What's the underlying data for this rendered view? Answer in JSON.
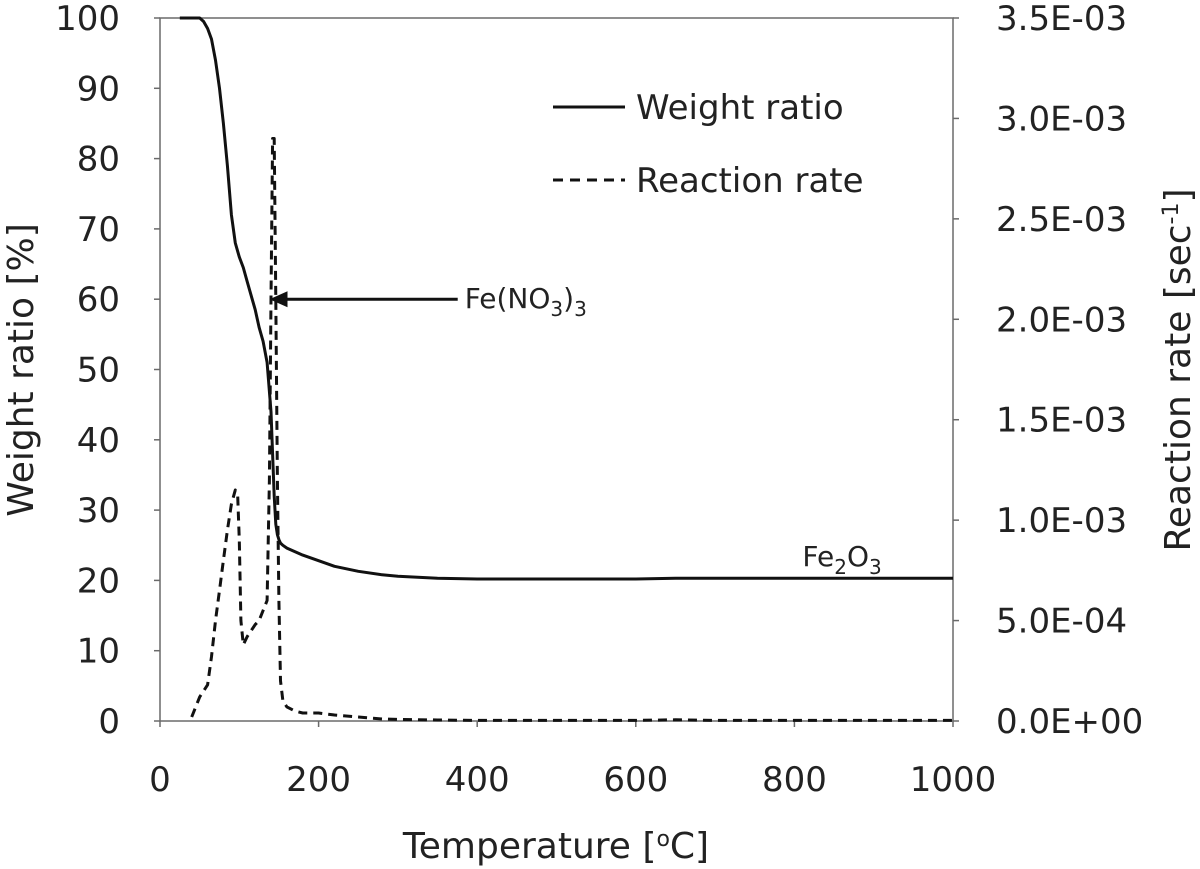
{
  "chart_data": {
    "type": "line",
    "xlabel": "Temperature [°C]",
    "ylabel_left": "Weight ratio [%]",
    "ylabel_right": "Reaction rate [sec-1]",
    "xlim": [
      0,
      1000
    ],
    "ylim_left": [
      0,
      100
    ],
    "ylim_right": [
      0,
      0.0035
    ],
    "x_ticks": [
      "0",
      "200",
      "400",
      "600",
      "800",
      "1000"
    ],
    "y_left_ticks": [
      "0",
      "10",
      "20",
      "30",
      "40",
      "50",
      "60",
      "70",
      "80",
      "90",
      "100"
    ],
    "y_right_ticks": [
      "0.0E+00",
      "5.0E-04",
      "1.0E-03",
      "1.5E-03",
      "2.0E-03",
      "2.5E-03",
      "3.0E-03",
      "3.5E-03"
    ],
    "grid": false,
    "legend_position": "top-right",
    "series": [
      {
        "name": "Weight ratio",
        "axis": "left",
        "style": "solid",
        "x": [
          25,
          40,
          50,
          55,
          60,
          65,
          70,
          75,
          80,
          85,
          90,
          95,
          100,
          105,
          110,
          115,
          120,
          125,
          130,
          135,
          140,
          142,
          144,
          146,
          148,
          150,
          152,
          155,
          160,
          170,
          180,
          200,
          220,
          250,
          280,
          300,
          350,
          400,
          450,
          500,
          550,
          600,
          650,
          700,
          750,
          800,
          850,
          900,
          950,
          1000
        ],
        "y": [
          100,
          100,
          100,
          99.5,
          98.5,
          97,
          94,
          90,
          85,
          79,
          72,
          68,
          66,
          64.5,
          62.5,
          60.5,
          58.5,
          56,
          54,
          51,
          44,
          38,
          32,
          28,
          26.5,
          25.8,
          25.3,
          25,
          24.6,
          24.1,
          23.6,
          22.8,
          22,
          21.3,
          20.8,
          20.6,
          20.3,
          20.2,
          20.2,
          20.2,
          20.2,
          20.2,
          20.3,
          20.3,
          20.3,
          20.3,
          20.3,
          20.3,
          20.3,
          20.3
        ]
      },
      {
        "name": "Reaction rate",
        "axis": "right",
        "style": "dashed",
        "x": [
          40,
          50,
          60,
          65,
          70,
          75,
          80,
          85,
          90,
          95,
          98,
          100,
          102,
          105,
          110,
          115,
          120,
          125,
          130,
          135,
          138,
          140,
          142,
          144,
          146,
          148,
          150,
          152,
          155,
          160,
          170,
          180,
          200,
          220,
          250,
          280,
          300,
          350,
          400,
          450,
          500,
          550,
          600,
          650,
          700,
          750,
          800,
          850,
          900,
          950,
          1000
        ],
        "y": [
          2e-05,
          0.00012,
          0.00018,
          0.00032,
          0.0005,
          0.00065,
          0.0008,
          0.00095,
          0.00108,
          0.00115,
          0.00112,
          0.0009,
          0.0005,
          0.00038,
          0.00042,
          0.00045,
          0.00048,
          0.0005,
          0.00055,
          0.0006,
          0.0012,
          0.0021,
          0.0029,
          0.0029,
          0.0021,
          0.0012,
          0.0006,
          0.0002,
          0.0001,
          7e-05,
          5e-05,
          4e-05,
          4e-05,
          3e-05,
          2e-05,
          1e-05,
          8e-06,
          5e-06,
          3e-06,
          3e-06,
          3e-06,
          3e-06,
          3e-06,
          6e-06,
          3e-06,
          3e-06,
          3e-06,
          3e-06,
          3e-06,
          3e-06,
          3e-06
        ]
      }
    ],
    "annotations": [
      {
        "label": "Fe(NO3)3",
        "text_main": "Fe(NO",
        "text_sub1": "3",
        "text_close": ")",
        "text_sub2": "3",
        "x": 470,
        "y": 60,
        "arrow_to_x": 128,
        "arrow_to_y": 60
      },
      {
        "label": "Fe2O3",
        "text_main1": "Fe",
        "text_sub1": "2",
        "text_main2": "O",
        "text_sub2": "3",
        "x": 800,
        "y": 23.5
      }
    ]
  }
}
